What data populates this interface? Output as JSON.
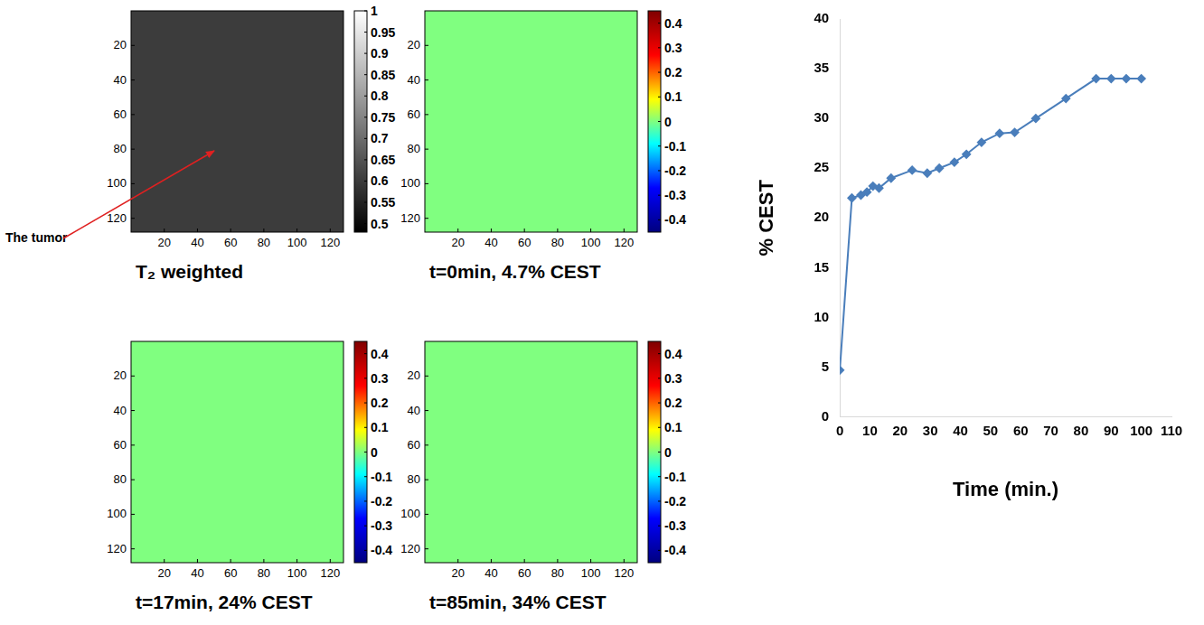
{
  "chart_data": [
    {
      "type": "image",
      "title": "T₂ weighted",
      "annotations": [
        "The tumor"
      ],
      "xlim": [
        0,
        128
      ],
      "ylim": [
        0,
        128
      ],
      "xticks": [
        20,
        40,
        60,
        80,
        100,
        120
      ],
      "yticks": [
        20,
        40,
        60,
        80,
        100,
        120
      ],
      "colorbar": {
        "range": [
          0.48,
          1
        ],
        "ticks": [
          0.5,
          0.55,
          0.6,
          0.65,
          0.7,
          0.75,
          0.8,
          0.85,
          0.9,
          0.95,
          1
        ],
        "colors": [
          "#000000",
          "#ffffff"
        ]
      }
    },
    {
      "type": "image",
      "title": "t=0min, 4.7% CEST",
      "xlim": [
        0,
        128
      ],
      "ylim": [
        0,
        128
      ],
      "xticks": [
        20,
        40,
        60,
        80,
        100,
        120
      ],
      "yticks": [
        20,
        40,
        60,
        80,
        100,
        120
      ],
      "colorbar": {
        "range": [
          -0.45,
          0.45
        ],
        "ticks": [
          -0.4,
          -0.3,
          -0.2,
          -0.1,
          0,
          0.1,
          0.2,
          0.3,
          0.4
        ],
        "colors": [
          "#00007f",
          "#0000ff",
          "#00ffff",
          "#ffff00",
          "#ff0000",
          "#7f0000"
        ]
      }
    },
    {
      "type": "image",
      "title": "t=17min, 24% CEST",
      "xlim": [
        0,
        128
      ],
      "ylim": [
        0,
        128
      ],
      "xticks": [
        20,
        40,
        60,
        80,
        100,
        120
      ],
      "yticks": [
        20,
        40,
        60,
        80,
        100,
        120
      ],
      "colorbar": {
        "range": [
          -0.45,
          0.45
        ],
        "ticks": [
          -0.4,
          -0.3,
          -0.2,
          -0.1,
          0,
          0.1,
          0.2,
          0.3,
          0.4
        ],
        "colors": [
          "#00007f",
          "#0000ff",
          "#00ffff",
          "#ffff00",
          "#ff0000",
          "#7f0000"
        ]
      }
    },
    {
      "type": "image",
      "title": "t=85min, 34% CEST",
      "xlim": [
        0,
        128
      ],
      "ylim": [
        0,
        128
      ],
      "xticks": [
        20,
        40,
        60,
        80,
        100,
        120
      ],
      "yticks": [
        20,
        40,
        60,
        80,
        100,
        120
      ],
      "colorbar": {
        "range": [
          -0.45,
          0.45
        ],
        "ticks": [
          -0.4,
          -0.3,
          -0.2,
          -0.1,
          0,
          0.1,
          0.2,
          0.3,
          0.4
        ],
        "colors": [
          "#00007f",
          "#0000ff",
          "#00ffff",
          "#ffff00",
          "#ff0000",
          "#7f0000"
        ]
      }
    },
    {
      "type": "line",
      "x_label": "Time (min.)",
      "y_label": "% CEST",
      "x": [
        0,
        4,
        7,
        9,
        11,
        13,
        17,
        24,
        29,
        33,
        38,
        42,
        47,
        53,
        58,
        65,
        75,
        85,
        90,
        95,
        100
      ],
      "values": [
        4.7,
        22,
        22.3,
        22.6,
        23.2,
        23,
        24,
        24.8,
        24.5,
        25,
        25.6,
        26.4,
        27.6,
        28.5,
        28.6,
        30,
        32,
        34,
        34,
        34,
        34
      ],
      "color": "#4a7ebb",
      "marker": "diamond",
      "xlim": [
        0,
        110
      ],
      "xticks": [
        0,
        10,
        20,
        30,
        40,
        50,
        60,
        70,
        80,
        90,
        100,
        110
      ],
      "ylim": [
        0,
        40
      ],
      "yticks": [
        0,
        5,
        10,
        15,
        20,
        25,
        30,
        35,
        40
      ],
      "grid": false
    }
  ]
}
